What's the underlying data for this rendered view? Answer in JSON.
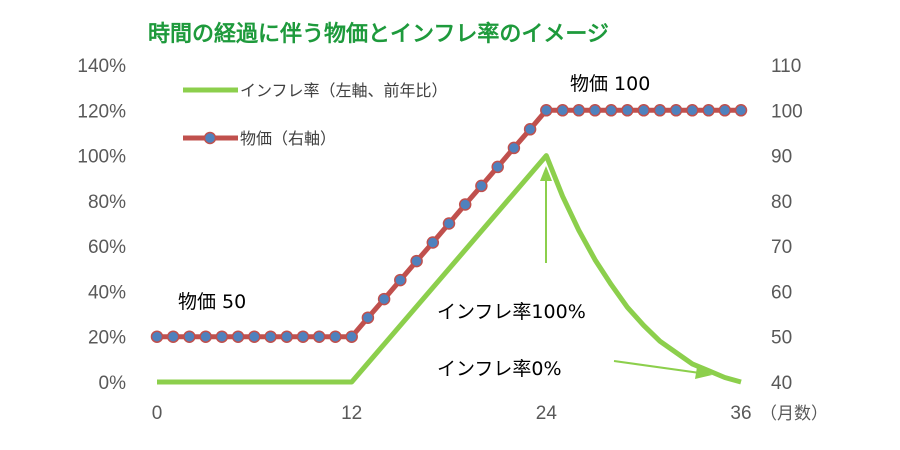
{
  "chart_data": {
    "type": "line",
    "title": "時間の経過に伴う物価とインフレ率のイメージ",
    "x_unit": "（月数）",
    "x_ticks": [
      0,
      12,
      24,
      36
    ],
    "y_left": {
      "ticks": [
        "0%",
        "20%",
        "40%",
        "60%",
        "80%",
        "100%",
        "120%",
        "140%"
      ],
      "range": [
        0,
        140
      ]
    },
    "y_right": {
      "ticks": [
        "40",
        "50",
        "60",
        "70",
        "80",
        "90",
        "100",
        "110"
      ],
      "range": [
        40,
        110
      ]
    },
    "legend": {
      "position": "top-left",
      "entries": [
        "インフレ率（左軸、前年比）",
        "物価（右軸）"
      ]
    },
    "series": [
      {
        "name": "インフレ率（左軸、前年比）",
        "axis": "left",
        "color": "#8ccf4c",
        "points": [
          [
            0,
            0
          ],
          [
            12,
            0
          ],
          [
            24,
            100
          ],
          [
            25,
            82
          ],
          [
            26,
            67
          ],
          [
            27,
            54
          ],
          [
            28,
            43
          ],
          [
            29,
            33
          ],
          [
            30,
            25
          ],
          [
            31,
            18
          ],
          [
            32,
            13
          ],
          [
            33,
            8
          ],
          [
            34,
            5
          ],
          [
            35,
            2
          ],
          [
            36,
            0
          ]
        ]
      },
      {
        "name": "物価（右軸）",
        "axis": "right",
        "color": "#c0504d",
        "marker_color": "#4f81bd",
        "x": [
          0,
          1,
          2,
          3,
          4,
          5,
          6,
          7,
          8,
          9,
          10,
          11,
          12,
          13,
          14,
          15,
          16,
          17,
          18,
          19,
          20,
          21,
          22,
          23,
          24,
          25,
          26,
          27,
          28,
          29,
          30,
          31,
          32,
          33,
          34,
          35,
          36
        ],
        "values": [
          50,
          50,
          50,
          50,
          50,
          50,
          50,
          50,
          50,
          50,
          50,
          50,
          50,
          54.2,
          58.3,
          62.5,
          66.7,
          70.8,
          75,
          79.2,
          83.3,
          87.5,
          91.7,
          95.8,
          100,
          100,
          100,
          100,
          100,
          100,
          100,
          100,
          100,
          100,
          100,
          100,
          100
        ]
      }
    ],
    "annotations": {
      "price_start": "物価 50",
      "price_end": "物価 100",
      "inflation_peak": "インフレ率100%",
      "inflation_zero": "インフレ率0%"
    },
    "arrow_color": "#8ccf4c"
  }
}
